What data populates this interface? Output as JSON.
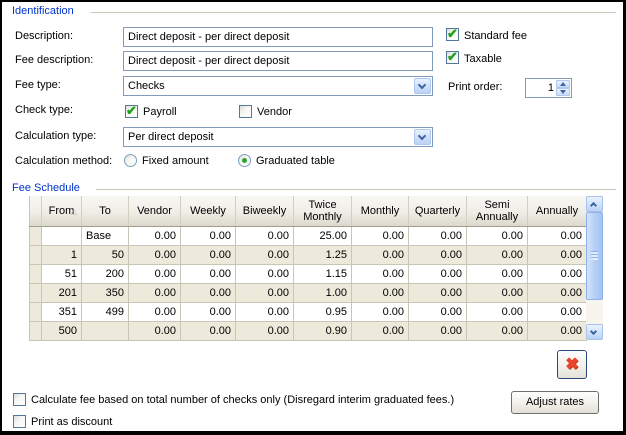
{
  "identification": {
    "group_label": "Identification",
    "description": {
      "label": "Description:",
      "value": "Direct deposit - per direct deposit"
    },
    "fee_description": {
      "label": "Fee description:",
      "value": "Direct deposit - per direct deposit"
    },
    "fee_type": {
      "label": "Fee type:",
      "value": "Checks"
    },
    "check_type": {
      "label": "Check type:",
      "payroll": {
        "label": "Payroll",
        "checked": true
      },
      "vendor": {
        "label": "Vendor",
        "checked": false
      }
    },
    "calculation_type": {
      "label": "Calculation type:",
      "value": "Per direct deposit"
    },
    "calculation_method": {
      "label": "Calculation method:",
      "fixed": {
        "label": "Fixed amount",
        "selected": false
      },
      "graduated": {
        "label": "Graduated table",
        "selected": true
      }
    },
    "standard_fee": {
      "label": "Standard fee",
      "checked": true
    },
    "taxable": {
      "label": "Taxable",
      "checked": true
    },
    "print_order": {
      "label": "Print order:",
      "value": "1"
    }
  },
  "fee_schedule": {
    "group_label": "Fee Schedule",
    "sort_column": "From",
    "sort_direction": "ascending",
    "columns": [
      "From",
      "To",
      "Vendor",
      "Weekly",
      "Biweekly",
      "Twice Monthly",
      "Monthly",
      "Quarterly",
      "Semi Annually",
      "Annually"
    ],
    "rows": [
      [
        "",
        "Base",
        "0.00",
        "0.00",
        "0.00",
        "25.00",
        "0.00",
        "0.00",
        "0.00",
        "0.00"
      ],
      [
        "1",
        "50",
        "0.00",
        "0.00",
        "0.00",
        "1.25",
        "0.00",
        "0.00",
        "0.00",
        "0.00"
      ],
      [
        "51",
        "200",
        "0.00",
        "0.00",
        "0.00",
        "1.15",
        "0.00",
        "0.00",
        "0.00",
        "0.00"
      ],
      [
        "201",
        "350",
        "0.00",
        "0.00",
        "0.00",
        "1.00",
        "0.00",
        "0.00",
        "0.00",
        "0.00"
      ],
      [
        "351",
        "499",
        "0.00",
        "0.00",
        "0.00",
        "0.95",
        "0.00",
        "0.00",
        "0.00",
        "0.00"
      ],
      [
        "500",
        "",
        "0.00",
        "0.00",
        "0.00",
        "0.90",
        "0.00",
        "0.00",
        "0.00",
        "0.00"
      ]
    ]
  },
  "footer": {
    "calc_total_checkbox": {
      "label": "Calculate fee based on total number of checks only (Disregard interim graduated fees.)",
      "checked": false
    },
    "print_discount_checkbox": {
      "label": "Print as discount",
      "checked": false
    },
    "adjust_rates_button": "Adjust rates",
    "delete_button_icon": "red-x"
  },
  "colors": {
    "group_label_blue": "#0033CC",
    "input_border": "#7F9DB9",
    "check_green": "#1FA31F",
    "alt_row_beige": "#EDE9DB",
    "delete_red": "#E8462B",
    "scrollbar_blue": "#B6D0F7"
  }
}
